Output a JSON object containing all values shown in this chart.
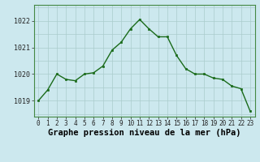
{
  "x": [
    0,
    1,
    2,
    3,
    4,
    5,
    6,
    7,
    8,
    9,
    10,
    11,
    12,
    13,
    14,
    15,
    16,
    17,
    18,
    19,
    20,
    21,
    22,
    23
  ],
  "y": [
    1019.0,
    1019.4,
    1020.0,
    1019.8,
    1019.75,
    1020.0,
    1020.05,
    1020.3,
    1020.9,
    1021.2,
    1021.7,
    1022.05,
    1021.7,
    1021.4,
    1021.4,
    1020.7,
    1020.2,
    1020.0,
    1020.0,
    1019.85,
    1019.8,
    1019.55,
    1019.45,
    1018.6
  ],
  "line_color": "#1a6b1a",
  "marker_color": "#1a6b1a",
  "bg_color": "#cce8ee",
  "grid_color": "#aacccc",
  "xlabel": "Graphe pression niveau de la mer (hPa)",
  "xlabel_fontsize": 7.5,
  "tick_fontsize": 6.5,
  "ylim": [
    1018.4,
    1022.6
  ],
  "yticks": [
    1019,
    1020,
    1021,
    1022
  ],
  "xticks": [
    0,
    1,
    2,
    3,
    4,
    5,
    6,
    7,
    8,
    9,
    10,
    11,
    12,
    13,
    14,
    15,
    16,
    17,
    18,
    19,
    20,
    21,
    22,
    23
  ],
  "figsize": [
    3.2,
    2.0
  ],
  "dpi": 100
}
